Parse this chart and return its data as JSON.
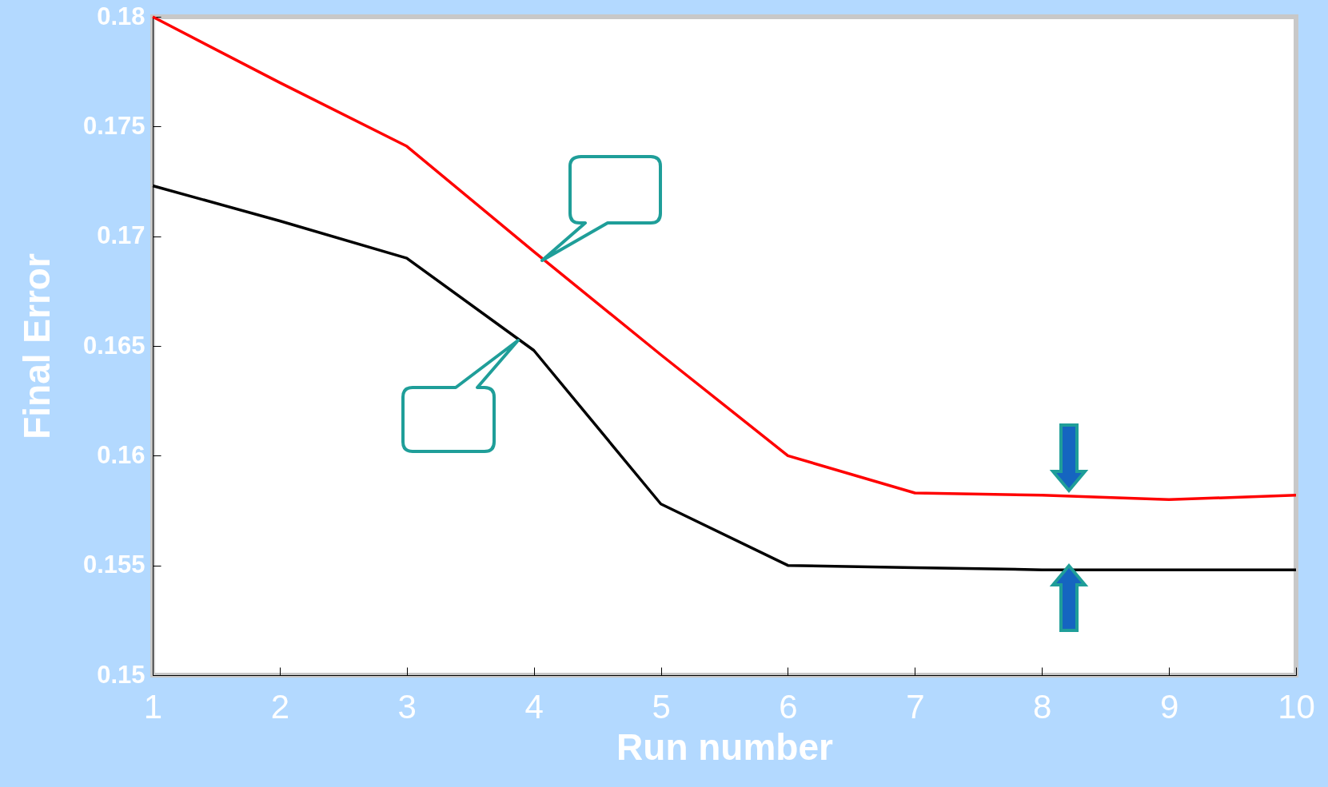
{
  "chart_data": {
    "type": "line",
    "xlabel": "Run number",
    "ylabel": "Final Error",
    "x": [
      1,
      2,
      3,
      4,
      5,
      6,
      7,
      8,
      9,
      10
    ],
    "series": [
      {
        "color": "#ff0000",
        "values": [
          0.18,
          0.177,
          0.1741,
          0.1693,
          0.1646,
          0.16,
          0.1583,
          0.1582,
          0.158,
          0.1582
        ]
      },
      {
        "color": "#000000",
        "values": [
          0.1723,
          0.1707,
          0.169,
          0.1648,
          0.1578,
          0.155,
          0.1549,
          0.1548,
          0.1548,
          0.1548
        ]
      }
    ],
    "xlim": [
      1,
      10
    ],
    "xticks": [
      1,
      2,
      3,
      4,
      5,
      6,
      7,
      8,
      9,
      10
    ],
    "ylim": [
      0.15,
      0.18
    ],
    "yticks": [
      0.15,
      0.155,
      0.16,
      0.165,
      0.17,
      0.175,
      0.18
    ],
    "grid": false,
    "marker": "none",
    "line_style": "solid"
  }
}
